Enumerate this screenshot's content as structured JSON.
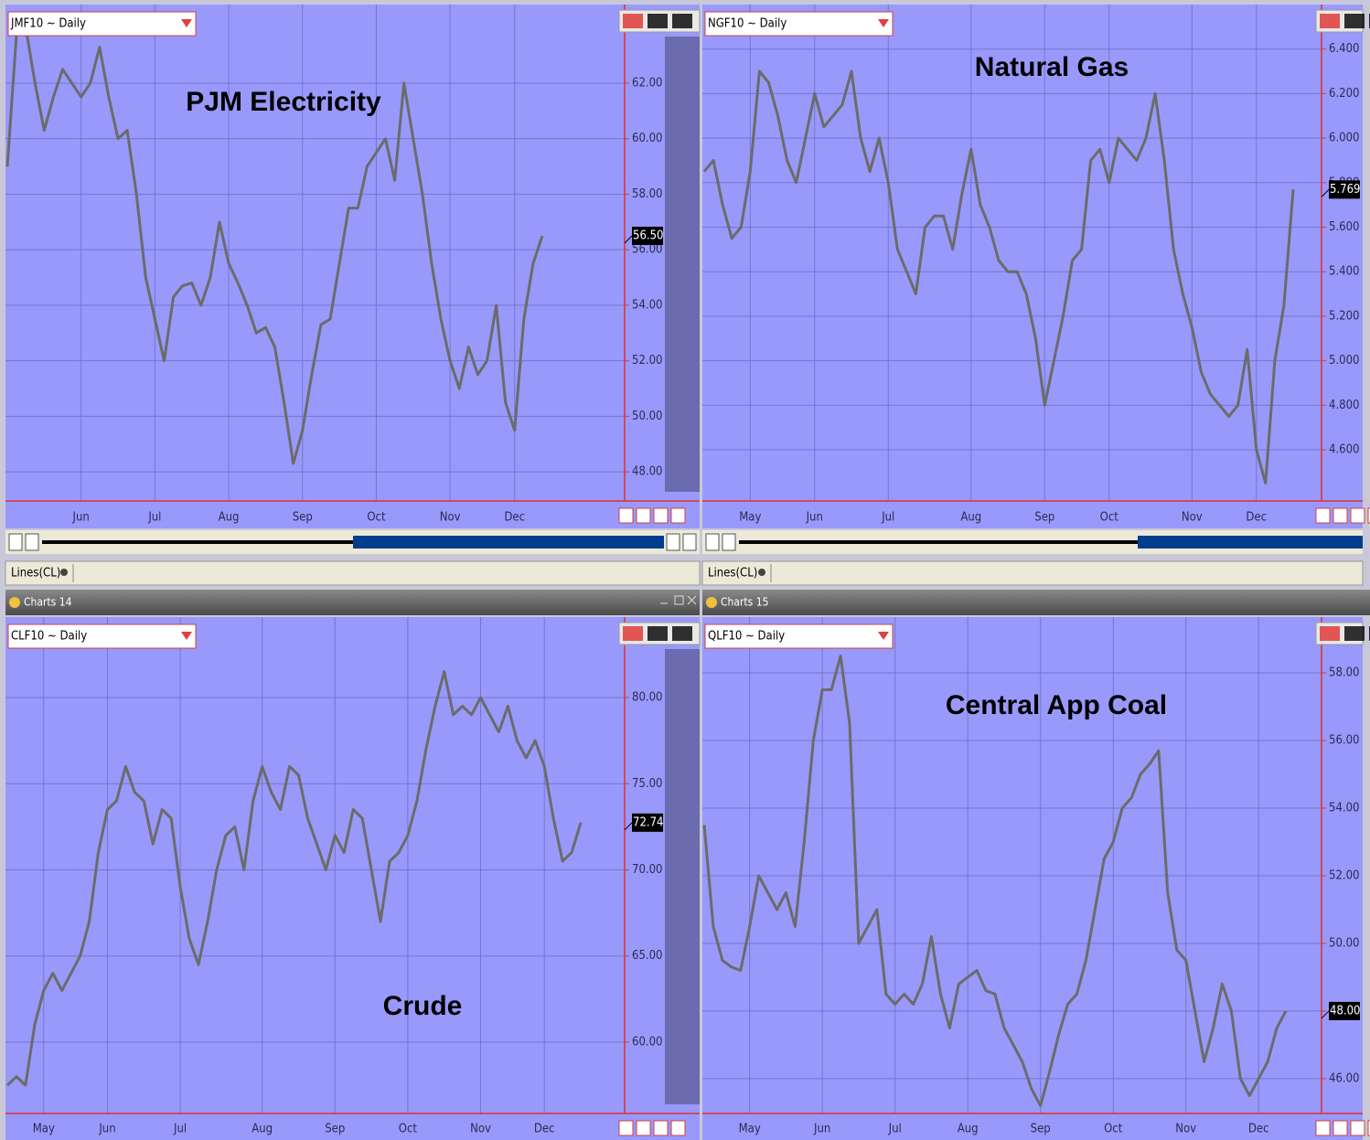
{
  "windows": [
    {
      "title": "Charts 14"
    },
    {
      "title": "Charts 15"
    }
  ],
  "indicators": [
    "Lines(CL)",
    "Lines(CL)"
  ],
  "chart_data": [
    {
      "type": "line",
      "symbol": "JMF10 ~ Daily",
      "title": "PJM Electricity",
      "color": "#6b6b6b",
      "grid": true,
      "ylim": [
        46.95,
        64.83
      ],
      "yticks": [
        {
          "value": 48,
          "label": "48.00"
        },
        {
          "value": 50,
          "label": "50.00"
        },
        {
          "value": 52,
          "label": "52.00"
        },
        {
          "value": 54,
          "label": "54.00"
        },
        {
          "value": 56,
          "label": "56.00"
        },
        {
          "value": 58,
          "label": "58.00"
        },
        {
          "value": 60,
          "label": "60.00"
        },
        {
          "value": 62,
          "label": "62.00"
        }
      ],
      "categories": [
        null,
        null,
        null,
        null,
        null,
        null,
        null,
        null,
        "Jun",
        null,
        null,
        null,
        null,
        null,
        null,
        null,
        "Jul",
        null,
        null,
        null,
        null,
        null,
        null,
        null,
        "Aug",
        null,
        null,
        null,
        null,
        null,
        null,
        null,
        "Sep",
        null,
        null,
        null,
        null,
        null,
        null,
        null,
        "Oct",
        null,
        null,
        null,
        null,
        null,
        null,
        null,
        "Nov",
        null,
        null,
        null,
        null,
        null,
        null,
        "Dec",
        null,
        null,
        null
      ],
      "values": [
        59,
        63.8,
        64,
        62,
        60.3,
        61.5,
        62.5,
        62,
        61.5,
        62,
        63.3,
        61.5,
        60,
        60.3,
        58,
        55,
        53.5,
        52,
        54.3,
        54.7,
        54.8,
        54,
        55,
        57,
        55.5,
        54.8,
        54,
        53,
        53.2,
        52.5,
        50.5,
        48.3,
        49.5,
        51.5,
        53.3,
        53.5,
        55.5,
        57.5,
        57.5,
        59,
        59.5,
        60,
        58.5,
        62,
        60,
        58,
        55.5,
        53.5,
        52,
        51,
        52.5,
        51.5,
        52,
        54,
        50.5,
        49.5,
        53.5,
        55.5,
        56.5
      ],
      "value_labels": [
        null,
        null,
        null,
        null,
        null,
        null,
        null,
        null,
        null,
        null,
        null,
        null,
        null,
        null,
        null,
        null,
        null,
        null,
        null,
        null,
        null,
        null,
        null,
        null,
        null,
        null,
        null,
        null,
        null,
        null,
        null,
        null,
        null,
        null,
        null,
        null,
        null,
        null,
        null,
        null,
        null,
        null,
        null,
        null,
        null,
        null,
        null,
        null,
        null,
        null,
        null,
        null,
        null,
        null,
        null,
        null,
        null,
        null,
        "56.50"
      ]
    },
    {
      "type": "line",
      "symbol": "NGF10 ~ Daily",
      "title": "Natural Gas",
      "color": "#6b6b6b",
      "grid": true,
      "ylim": [
        4.37,
        6.6
      ],
      "yticks": [
        {
          "value": 4.6,
          "label": "4.600"
        },
        {
          "value": 4.8,
          "label": "4.800"
        },
        {
          "value": 5,
          "label": "5.000"
        },
        {
          "value": 5.2,
          "label": "5.200"
        },
        {
          "value": 5.4,
          "label": "5.400"
        },
        {
          "value": 5.6,
          "label": "5.600"
        },
        {
          "value": 5.8,
          "label": "5.800"
        },
        {
          "value": 6,
          "label": "6.000"
        },
        {
          "value": 6.2,
          "label": "6.200"
        },
        {
          "value": 6.4,
          "label": "6.400"
        }
      ],
      "categories": [
        null,
        null,
        null,
        null,
        null,
        "May",
        null,
        null,
        null,
        null,
        null,
        null,
        "Jun",
        null,
        null,
        null,
        null,
        null,
        null,
        null,
        "Jul",
        null,
        null,
        null,
        null,
        null,
        null,
        null,
        null,
        "Aug",
        null,
        null,
        null,
        null,
        null,
        null,
        null,
        "Sep",
        null,
        null,
        null,
        null,
        null,
        null,
        "Oct",
        null,
        null,
        null,
        null,
        null,
        null,
        null,
        null,
        "Nov",
        null,
        null,
        null,
        null,
        null,
        null,
        "Dec",
        null,
        null,
        null,
        null
      ],
      "values": [
        5.85,
        5.9,
        5.7,
        5.55,
        5.6,
        5.85,
        6.3,
        6.25,
        6.1,
        5.9,
        5.8,
        6.0,
        6.2,
        6.05,
        6.1,
        6.15,
        6.3,
        6.0,
        5.85,
        6.0,
        5.8,
        5.5,
        5.4,
        5.3,
        5.6,
        5.65,
        5.65,
        5.5,
        5.75,
        5.95,
        5.7,
        5.6,
        5.45,
        5.4,
        5.4,
        5.3,
        5.1,
        4.8,
        5.0,
        5.2,
        5.45,
        5.5,
        5.9,
        5.95,
        5.8,
        6.0,
        5.95,
        5.9,
        6.0,
        6.2,
        5.9,
        5.5,
        5.3,
        5.15,
        4.95,
        4.85,
        4.8,
        4.75,
        4.8,
        5.05,
        4.6,
        4.45,
        5.0,
        5.25,
        5.769
      ],
      "value_labels": [
        null,
        null,
        null,
        null,
        null,
        null,
        null,
        null,
        null,
        null,
        null,
        null,
        null,
        null,
        null,
        null,
        null,
        null,
        null,
        null,
        null,
        null,
        null,
        null,
        null,
        null,
        null,
        null,
        null,
        null,
        null,
        null,
        null,
        null,
        null,
        null,
        null,
        null,
        null,
        null,
        null,
        null,
        null,
        null,
        null,
        null,
        null,
        null,
        null,
        null,
        null,
        null,
        null,
        null,
        null,
        null,
        null,
        null,
        null,
        null,
        null,
        null,
        null,
        null,
        "5.769"
      ]
    },
    {
      "type": "line",
      "symbol": "CLF10 ~ Daily",
      "title": "Crude",
      "color": "#6b6b6b",
      "grid": true,
      "ylim": [
        55.86,
        84.67
      ],
      "yticks": [
        {
          "value": 60,
          "label": "60.00"
        },
        {
          "value": 65,
          "label": "65.00"
        },
        {
          "value": 70,
          "label": "70.00"
        },
        {
          "value": 75,
          "label": "75.00"
        },
        {
          "value": 80,
          "label": "80.00"
        }
      ],
      "categories": [
        null,
        null,
        null,
        null,
        "May",
        null,
        null,
        null,
        null,
        null,
        null,
        "Jun",
        null,
        null,
        null,
        null,
        null,
        null,
        null,
        "Jul",
        null,
        null,
        null,
        null,
        null,
        null,
        null,
        null,
        "Aug",
        null,
        null,
        null,
        null,
        null,
        null,
        null,
        "Sep",
        null,
        null,
        null,
        null,
        null,
        null,
        null,
        "Oct",
        null,
        null,
        null,
        null,
        null,
        null,
        null,
        "Nov",
        null,
        null,
        null,
        null,
        null,
        null,
        "Dec",
        null,
        null,
        null,
        null
      ],
      "values": [
        57.5,
        58,
        57.5,
        61,
        63,
        64,
        63,
        64,
        65,
        67,
        71,
        73.5,
        74,
        76,
        74.5,
        74,
        71.5,
        73.5,
        73,
        69,
        66,
        64.5,
        67,
        70,
        72,
        72.5,
        70,
        74,
        76,
        74.5,
        73.5,
        76,
        75.5,
        73,
        71.5,
        70,
        72,
        71,
        73.5,
        73,
        70,
        67,
        70.5,
        71,
        72,
        74,
        77,
        79.5,
        81.5,
        79,
        79.5,
        79,
        80,
        79,
        78,
        79.5,
        77.5,
        76.5,
        77.5,
        76,
        73,
        70.5,
        71,
        72.74
      ],
      "value_labels": [
        null,
        null,
        null,
        null,
        null,
        null,
        null,
        null,
        null,
        null,
        null,
        null,
        null,
        null,
        null,
        null,
        null,
        null,
        null,
        null,
        null,
        null,
        null,
        null,
        null,
        null,
        null,
        null,
        null,
        null,
        null,
        null,
        null,
        null,
        null,
        null,
        null,
        null,
        null,
        null,
        null,
        null,
        null,
        null,
        null,
        null,
        null,
        null,
        null,
        null,
        null,
        null,
        null,
        null,
        null,
        null,
        null,
        null,
        null,
        null,
        null,
        null,
        null,
        "72.74"
      ]
    },
    {
      "type": "line",
      "symbol": "QLF10 ~ Daily",
      "title": "Central App Coal",
      "color": "#6b6b6b",
      "grid": true,
      "ylim": [
        44.97,
        59.65
      ],
      "yticks": [
        {
          "value": 46,
          "label": "46.00"
        },
        {
          "value": 48,
          "label": "48.00"
        },
        {
          "value": 50,
          "label": "50.00"
        },
        {
          "value": 52,
          "label": "52.00"
        },
        {
          "value": 54,
          "label": "54.00"
        },
        {
          "value": 56,
          "label": "56.00"
        },
        {
          "value": 58,
          "label": "58.00"
        }
      ],
      "categories": [
        null,
        null,
        null,
        null,
        null,
        "May",
        null,
        null,
        null,
        null,
        null,
        null,
        null,
        "Jun",
        null,
        null,
        null,
        null,
        null,
        null,
        null,
        "Jul",
        null,
        null,
        null,
        null,
        null,
        null,
        null,
        "Aug",
        null,
        null,
        null,
        null,
        null,
        null,
        null,
        "Sep",
        null,
        null,
        null,
        null,
        null,
        null,
        null,
        "Oct",
        null,
        null,
        null,
        null,
        null,
        null,
        null,
        "Nov",
        null,
        null,
        null,
        null,
        null,
        null,
        null,
        "Dec",
        null,
        null,
        null
      ],
      "values": [
        53.5,
        50.5,
        49.5,
        49.3,
        49.2,
        50.5,
        52,
        51.5,
        51,
        51.5,
        50.5,
        53,
        56,
        57.5,
        57.5,
        58.5,
        56.5,
        50,
        50.5,
        51,
        48.5,
        48.2,
        48.5,
        48.2,
        48.8,
        50.2,
        48.5,
        47.5,
        48.8,
        49,
        49.2,
        48.6,
        48.5,
        47.5,
        47,
        46.5,
        45.7,
        45.2,
        46.2,
        47.3,
        48.2,
        48.5,
        49.5,
        51,
        52.5,
        53,
        54,
        54.3,
        55,
        55.3,
        55.7,
        51.5,
        49.8,
        49.5,
        48,
        46.5,
        47.5,
        48.8,
        48,
        46,
        45.5,
        46,
        46.5,
        47.5,
        48
      ],
      "value_labels": [
        null,
        null,
        null,
        null,
        null,
        null,
        null,
        null,
        null,
        null,
        null,
        null,
        null,
        null,
        null,
        null,
        null,
        null,
        null,
        null,
        null,
        null,
        null,
        null,
        null,
        null,
        null,
        null,
        null,
        null,
        null,
        null,
        null,
        null,
        null,
        null,
        null,
        null,
        null,
        null,
        null,
        null,
        null,
        null,
        null,
        null,
        null,
        null,
        null,
        null,
        null,
        null,
        null,
        null,
        null,
        null,
        null,
        null,
        null,
        null,
        null,
        null,
        null,
        null,
        "48.00"
      ]
    }
  ]
}
